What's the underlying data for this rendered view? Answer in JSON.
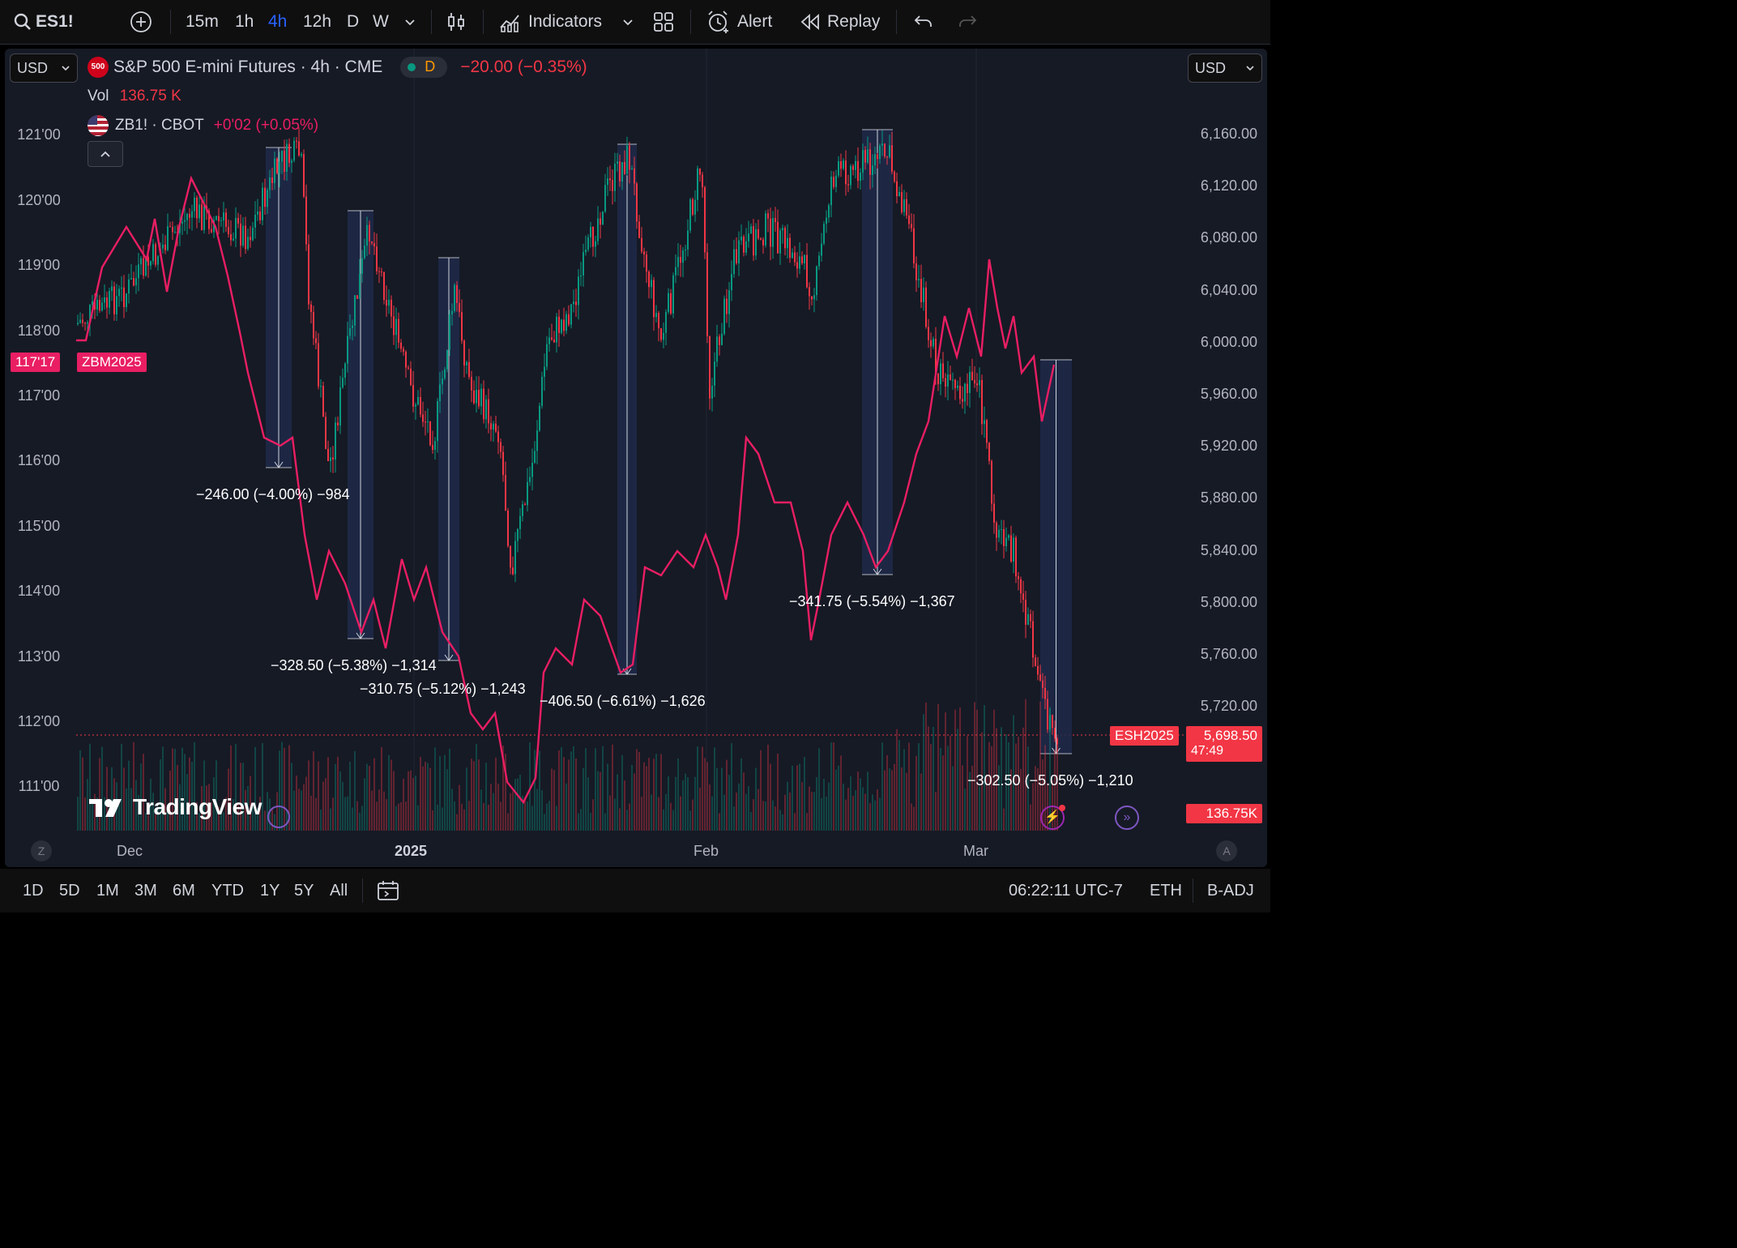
{
  "toolbar": {
    "symbol": "ES1!",
    "intervals": [
      "15m",
      "1h",
      "4h",
      "12h",
      "D",
      "W"
    ],
    "active_interval": "4h",
    "indicators_label": "Indicators",
    "alert_label": "Alert",
    "replay_label": "Replay"
  },
  "legend": {
    "currency": "USD",
    "badge": "500",
    "title": "S&P 500 E-mini Futures · 4h · CME",
    "session_badge": "D",
    "change": "−20.00 (−0.35%)",
    "vol_label": "Vol",
    "vol_value": "136.75 K",
    "compare_symbol": "ZB1! · CBOT",
    "compare_change": "+0'02 (+0.05%)"
  },
  "left_axis": [
    "121'00",
    "120'00",
    "119'00",
    "118'00",
    "117'00",
    "116'00",
    "115'00",
    "114'00",
    "113'00",
    "112'00",
    "111'00"
  ],
  "right_axis": [
    "6,160.00",
    "6,120.00",
    "6,080.00",
    "6,040.00",
    "6,000.00",
    "5,960.00",
    "5,920.00",
    "5,880.00",
    "5,840.00",
    "5,800.00",
    "5,760.00",
    "5,720.00"
  ],
  "time_axis": [
    "Dec",
    "2025",
    "Feb",
    "Mar"
  ],
  "tags": {
    "zb_value": "117'17",
    "zb_name": "ZBM2025",
    "es_name": "ESH2025",
    "es_price": "5,698.50",
    "es_countdown": "47:49",
    "vol_tag": "136.75K"
  },
  "measurements": [
    "−246.00 (−4.00%) −984",
    "−328.50 (−5.38%) −1,314",
    "−310.75 (−5.12%) −1,243",
    "−406.50 (−6.61%) −1,626",
    "−341.75 (−5.54%) −1,367",
    "−302.50 (−5.05%) −1,210"
  ],
  "watermark": "TradingView",
  "axis_corner_left": "Z",
  "axis_corner_right": "A",
  "bottom": {
    "ranges": [
      "1D",
      "5D",
      "1M",
      "3M",
      "6M",
      "YTD",
      "1Y",
      "5Y",
      "All"
    ],
    "time": "06:22:11 UTC-7",
    "session": "ETH",
    "adjust": "B-ADJ"
  },
  "colors": {
    "up": "#089981",
    "down": "#f23645",
    "compare_line": "#e91e63",
    "accent": "#2962ff",
    "highlight": "#1e2a4a"
  }
}
